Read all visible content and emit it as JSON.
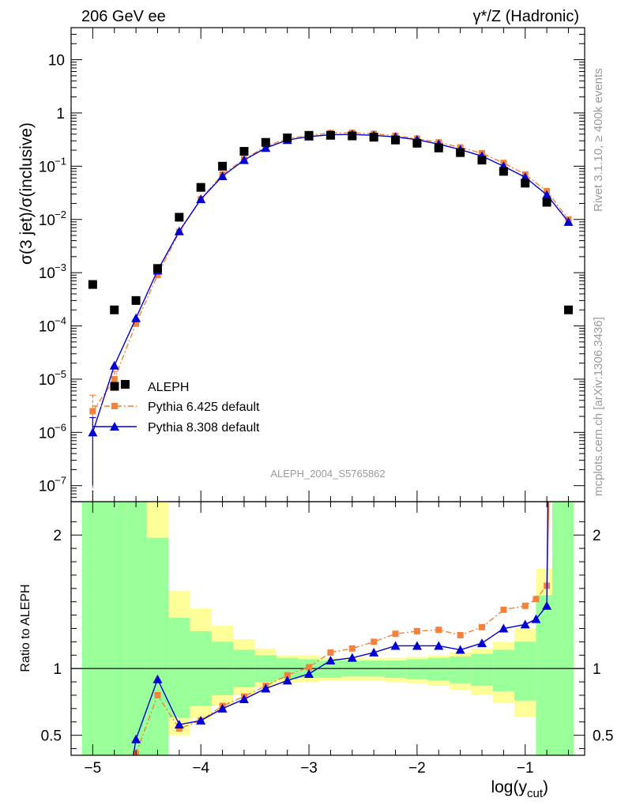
{
  "header": {
    "left": "206 GeV ee",
    "right": "γ*/Z (Hadronic)"
  },
  "side_labels": {
    "rivet": "Rivet 3.1.10, ≥ 400k events",
    "mcplots": "mcplots.cern.ch [arXiv:1306.3436]"
  },
  "watermark": "ALEPH_2004_S5765862",
  "colors": {
    "data": "#000000",
    "pythia6": "#f5813a",
    "pythia8": "#0000d6",
    "band_inner": "#99ff99",
    "band_outer": "#ffff99"
  },
  "chart_data": [
    {
      "type": "scatter",
      "panel": "main",
      "ylabel": "σ(3 jet)/σ(inclusive)",
      "yscale": "log",
      "ylim": [
        5e-08,
        40
      ],
      "xlim": [
        -5.2,
        -0.45
      ],
      "yticks": [
        {
          "v": 1e-07,
          "label": "10",
          "exp": "−7"
        },
        {
          "v": 1e-06,
          "label": "10",
          "exp": "−6"
        },
        {
          "v": 1e-05,
          "label": "10",
          "exp": "−5"
        },
        {
          "v": 0.0001,
          "label": "10",
          "exp": "−4"
        },
        {
          "v": 0.001,
          "label": "10",
          "exp": "−3"
        },
        {
          "v": 0.01,
          "label": "10",
          "exp": "−2"
        },
        {
          "v": 0.1,
          "label": "10",
          "exp": "−1"
        },
        {
          "v": 1,
          "label": "1",
          "exp": ""
        },
        {
          "v": 10,
          "label": "10",
          "exp": ""
        }
      ],
      "legend": {
        "position": "bottom-left",
        "entries": [
          "ALEPH",
          "Pythia 6.425 default",
          "Pythia 8.308 default"
        ]
      },
      "series": [
        {
          "name": "ALEPH",
          "x": [
            -5.0,
            -4.8,
            -4.6,
            -4.4,
            -4.2,
            -4.0,
            -3.8,
            -3.6,
            -3.4,
            -3.2,
            -3.0,
            -2.8,
            -2.6,
            -2.4,
            -2.2,
            -2.0,
            -1.8,
            -1.6,
            -1.4,
            -1.2,
            -1.0,
            -0.8,
            -0.6,
            -4.7
          ],
          "y": [
            0.0006,
            0.0002,
            0.0003,
            0.0012,
            0.011,
            0.04,
            0.1,
            0.19,
            0.28,
            0.34,
            0.38,
            0.38,
            0.37,
            0.35,
            0.31,
            0.27,
            0.22,
            0.18,
            0.13,
            0.08,
            0.048,
            0.021,
            0.0002,
            8e-06
          ]
        },
        {
          "name": "Pythia 6.425 default",
          "x": [
            -5.0,
            -4.8,
            -4.6,
            -4.4,
            -4.2,
            -4.0,
            -3.8,
            -3.6,
            -3.4,
            -3.2,
            -3.0,
            -2.8,
            -2.6,
            -2.4,
            -2.2,
            -2.0,
            -1.8,
            -1.6,
            -1.4,
            -1.2,
            -1.0,
            -0.8,
            -0.6
          ],
          "y": [
            2.5e-06,
            1e-05,
            0.00011,
            0.0009,
            0.0058,
            0.024,
            0.07,
            0.135,
            0.235,
            0.33,
            0.38,
            0.42,
            0.425,
            0.405,
            0.375,
            0.33,
            0.28,
            0.225,
            0.175,
            0.115,
            0.07,
            0.034,
            0.01
          ],
          "yerr": [
            2.5e-06,
            4e-06,
            0,
            0,
            0,
            0,
            0,
            0,
            0,
            0,
            0,
            0,
            0,
            0,
            0,
            0,
            0,
            0,
            0,
            0,
            0,
            0,
            0
          ]
        },
        {
          "name": "Pythia 8.308 default",
          "x": [
            -5.0,
            -4.8,
            -4.6,
            -4.4,
            -4.2,
            -4.0,
            -3.8,
            -3.6,
            -3.4,
            -3.2,
            -3.0,
            -2.8,
            -2.6,
            -2.4,
            -2.2,
            -2.0,
            -1.8,
            -1.6,
            -1.4,
            -1.2,
            -1.0,
            -0.8,
            -0.6
          ],
          "y": [
            1e-06,
            1.8e-05,
            0.00014,
            0.0011,
            0.006,
            0.024,
            0.065,
            0.13,
            0.22,
            0.31,
            0.36,
            0.39,
            0.395,
            0.38,
            0.355,
            0.315,
            0.26,
            0.205,
            0.155,
            0.1,
            0.062,
            0.029,
            0.009
          ],
          "yerr": [
            9e-07,
            0,
            0,
            0,
            0,
            0,
            0,
            0,
            0,
            0,
            0,
            0,
            0,
            0,
            0,
            0,
            0,
            0,
            0,
            0,
            0,
            0,
            0
          ]
        }
      ]
    },
    {
      "type": "line",
      "panel": "ratio",
      "ylabel": "Ratio to ALEPH",
      "xlabel": "log(y",
      "xlabel_sub": "cut",
      "xlabel_tail": ")",
      "ylim": [
        0.35,
        2.25
      ],
      "xlim": [
        -5.2,
        -0.45
      ],
      "xticks": [
        -5,
        -4,
        -3,
        -2,
        -1
      ],
      "xtick_labels": [
        "−5",
        "−4",
        "−3",
        "−2",
        "−1"
      ],
      "yticks": [
        0.5,
        1,
        2
      ],
      "ytick_labels": [
        "0.5",
        "1",
        "2"
      ],
      "bands": [
        {
          "x0": -5.1,
          "x1": -4.9,
          "lo": 0.35,
          "hi": 2.25,
          "olo": 0.35,
          "ohi": 2.25
        },
        {
          "x0": -4.9,
          "x1": -4.7,
          "lo": 0.35,
          "hi": 2.25,
          "olo": 0.35,
          "ohi": 2.25
        },
        {
          "x0": -4.7,
          "x1": -4.5,
          "lo": 0.35,
          "hi": 2.25,
          "olo": 0.35,
          "ohi": 2.25
        },
        {
          "x0": -4.5,
          "x1": -4.3,
          "lo": 0.35,
          "hi": 1.98,
          "olo": 0.35,
          "ohi": 2.25
        },
        {
          "x0": -4.3,
          "x1": -4.1,
          "lo": 0.63,
          "hi": 1.38,
          "olo": 0.5,
          "ohi": 1.58
        },
        {
          "x0": -4.1,
          "x1": -3.9,
          "lo": 0.72,
          "hi": 1.28,
          "olo": 0.62,
          "ohi": 1.45
        },
        {
          "x0": -3.9,
          "x1": -3.7,
          "lo": 0.8,
          "hi": 1.2,
          "olo": 0.72,
          "ohi": 1.32
        },
        {
          "x0": -3.7,
          "x1": -3.5,
          "lo": 0.86,
          "hi": 1.14,
          "olo": 0.8,
          "ohi": 1.22
        },
        {
          "x0": -3.5,
          "x1": -3.3,
          "lo": 0.9,
          "hi": 1.1,
          "olo": 0.86,
          "ohi": 1.15
        },
        {
          "x0": -3.3,
          "x1": -3.1,
          "lo": 0.92,
          "hi": 1.08,
          "olo": 0.9,
          "ohi": 1.1
        },
        {
          "x0": -3.1,
          "x1": -2.9,
          "lo": 0.93,
          "hi": 1.07,
          "olo": 0.9,
          "ohi": 1.1
        },
        {
          "x0": -2.9,
          "x1": -2.7,
          "lo": 0.93,
          "hi": 1.06,
          "olo": 0.91,
          "ohi": 1.08
        },
        {
          "x0": -2.7,
          "x1": -2.5,
          "lo": 0.94,
          "hi": 1.06,
          "olo": 0.91,
          "ohi": 1.08
        },
        {
          "x0": -2.5,
          "x1": -2.3,
          "lo": 0.94,
          "hi": 1.06,
          "olo": 0.91,
          "ohi": 1.08
        },
        {
          "x0": -2.3,
          "x1": -2.1,
          "lo": 0.93,
          "hi": 1.06,
          "olo": 0.9,
          "ohi": 1.08
        },
        {
          "x0": -2.1,
          "x1": -1.9,
          "lo": 0.92,
          "hi": 1.07,
          "olo": 0.89,
          "ohi": 1.09
        },
        {
          "x0": -1.9,
          "x1": -1.7,
          "lo": 0.91,
          "hi": 1.08,
          "olo": 0.87,
          "ohi": 1.1
        },
        {
          "x0": -1.7,
          "x1": -1.5,
          "lo": 0.89,
          "hi": 1.09,
          "olo": 0.84,
          "ohi": 1.12
        },
        {
          "x0": -1.5,
          "x1": -1.3,
          "lo": 0.87,
          "hi": 1.11,
          "olo": 0.8,
          "ohi": 1.15
        },
        {
          "x0": -1.3,
          "x1": -1.1,
          "lo": 0.83,
          "hi": 1.14,
          "olo": 0.74,
          "ohi": 1.2
        },
        {
          "x0": -1.1,
          "x1": -0.9,
          "lo": 0.76,
          "hi": 1.2,
          "olo": 0.64,
          "ohi": 1.3
        },
        {
          "x0": -0.9,
          "x1": -0.75,
          "lo": 0.35,
          "hi": 1.55,
          "olo": 0.35,
          "ohi": 1.75
        },
        {
          "x0": -0.75,
          "x1": -0.55,
          "lo": 0.35,
          "hi": 2.25,
          "olo": 0.35,
          "ohi": 2.25
        }
      ],
      "series": [
        {
          "name": "Pythia 6.425 default",
          "x": [
            -4.6,
            -4.4,
            -4.2,
            -4.0,
            -3.8,
            -3.6,
            -3.4,
            -3.2,
            -3.0,
            -2.8,
            -2.6,
            -2.4,
            -2.2,
            -2.0,
            -1.8,
            -1.6,
            -1.4,
            -1.2,
            -1.0,
            -0.9,
            -0.8
          ],
          "y": [
            0.36,
            0.8,
            0.55,
            0.61,
            0.72,
            0.79,
            0.87,
            0.95,
            1.01,
            1.12,
            1.15,
            1.2,
            1.26,
            1.28,
            1.29,
            1.25,
            1.31,
            1.44,
            1.47,
            1.52,
            1.62
          ]
        },
        {
          "name": "Pythia 8.308 default",
          "x": [
            -4.6,
            -4.4,
            -4.2,
            -4.0,
            -3.8,
            -3.6,
            -3.4,
            -3.2,
            -3.0,
            -2.8,
            -2.6,
            -2.4,
            -2.2,
            -2.0,
            -1.8,
            -1.6,
            -1.4,
            -1.2,
            -1.0,
            -0.9,
            -0.8
          ],
          "y": [
            0.47,
            0.92,
            0.58,
            0.61,
            0.7,
            0.77,
            0.85,
            0.91,
            0.96,
            1.06,
            1.08,
            1.12,
            1.17,
            1.17,
            1.17,
            1.14,
            1.19,
            1.3,
            1.33,
            1.37,
            1.47
          ]
        }
      ]
    }
  ]
}
